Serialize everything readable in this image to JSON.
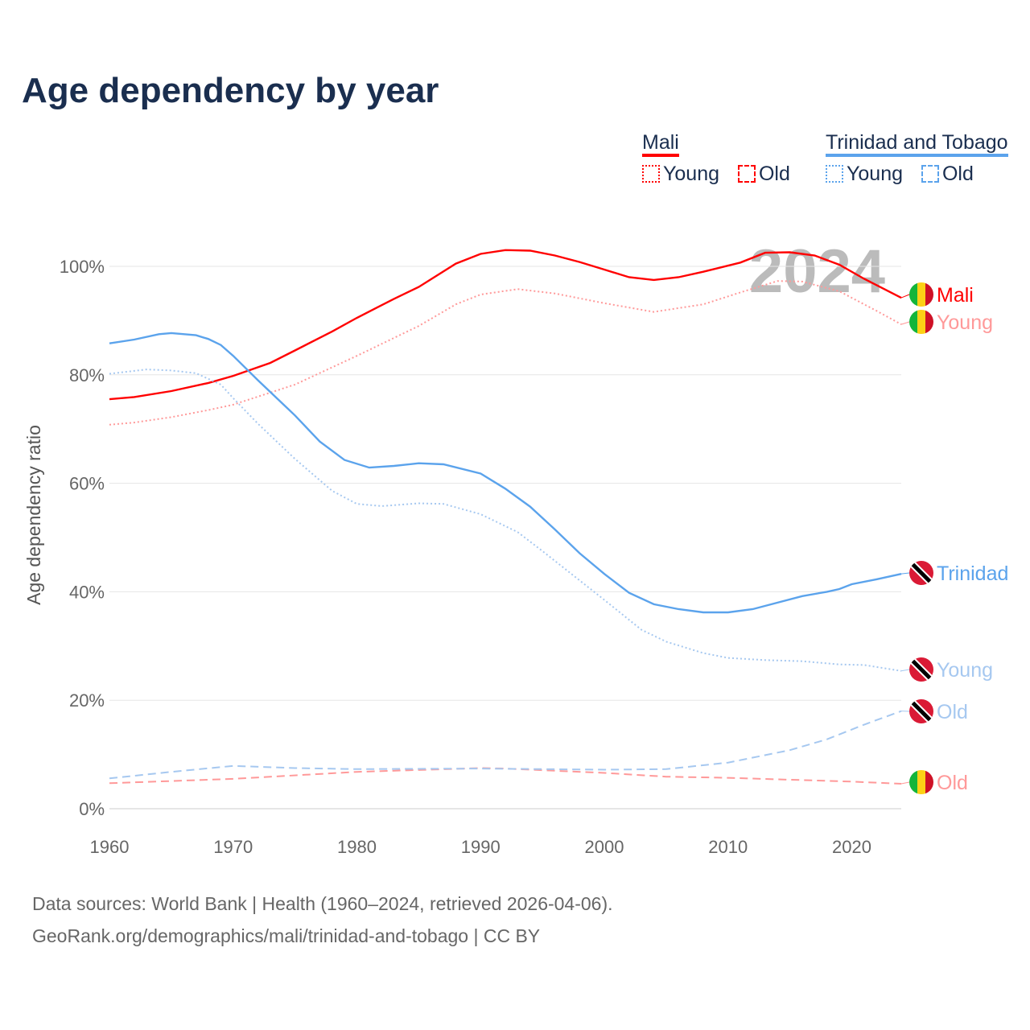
{
  "title": "Age dependency by year",
  "legend": {
    "groups": [
      {
        "name": "Mali",
        "color": "#ff0000",
        "items": [
          "Young",
          "Old"
        ]
      },
      {
        "name": "Trinidad and Tobago",
        "color": "#5ba3ec",
        "items": [
          "Young",
          "Old"
        ]
      }
    ]
  },
  "year_watermark": "2024",
  "source": [
    "Data sources: World Bank | Health (1960–2024, retrieved 2026-04-06).",
    "GeoRank.org/demographics/mali/trinidad-and-tobago | CC BY"
  ],
  "chart_data": {
    "type": "line",
    "title": "Age dependency by year",
    "xlabel": "",
    "ylabel": "Age dependency ratio",
    "xlim": [
      1960,
      2024
    ],
    "ylim": [
      0,
      100
    ],
    "xticks": [
      "1960",
      "1970",
      "1980",
      "1990",
      "2000",
      "2010",
      "2020"
    ],
    "yticks": [
      "0%",
      "20%",
      "40%",
      "60%",
      "80%",
      "100%"
    ],
    "series": [
      {
        "name": "Mali",
        "label": "Mali",
        "country": "mali",
        "color": "#ff0000",
        "style": "solid",
        "points": [
          [
            1960,
            75.5
          ],
          [
            1962,
            75.9
          ],
          [
            1965,
            77
          ],
          [
            1968,
            78.5
          ],
          [
            1970,
            79.8
          ],
          [
            1973,
            82.2
          ],
          [
            1975,
            84.5
          ],
          [
            1978,
            88
          ],
          [
            1980,
            90.5
          ],
          [
            1983,
            94
          ],
          [
            1985,
            96.2
          ],
          [
            1988,
            100.5
          ],
          [
            1990,
            102.3
          ],
          [
            1992,
            103
          ],
          [
            1994,
            102.9
          ],
          [
            1996,
            102
          ],
          [
            1998,
            100.8
          ],
          [
            2000,
            99.4
          ],
          [
            2002,
            98
          ],
          [
            2004,
            97.5
          ],
          [
            2006,
            98
          ],
          [
            2008,
            99
          ],
          [
            2011,
            100.7
          ],
          [
            2013,
            102.5
          ],
          [
            2015,
            102.6
          ],
          [
            2017,
            102
          ],
          [
            2019,
            100.3
          ],
          [
            2021,
            97.7
          ],
          [
            2024,
            94.2
          ]
        ]
      },
      {
        "name": "Mali Young",
        "label": "Young",
        "country": "mali",
        "color": "#ff9999",
        "style": "dotted",
        "points": [
          [
            1960,
            70.8
          ],
          [
            1962,
            71.2
          ],
          [
            1965,
            72.2
          ],
          [
            1968,
            73.5
          ],
          [
            1970,
            74.5
          ],
          [
            1975,
            78.2
          ],
          [
            1980,
            83.5
          ],
          [
            1985,
            89
          ],
          [
            1988,
            93
          ],
          [
            1990,
            94.8
          ],
          [
            1993,
            95.8
          ],
          [
            1996,
            95
          ],
          [
            2000,
            93.2
          ],
          [
            2004,
            91.6
          ],
          [
            2008,
            93
          ],
          [
            2011,
            95.2
          ],
          [
            2014,
            97.3
          ],
          [
            2016,
            97.2
          ],
          [
            2019,
            95.4
          ],
          [
            2022,
            91.8
          ],
          [
            2024,
            89.3
          ]
        ]
      },
      {
        "name": "Mali Old",
        "label": "Old",
        "country": "mali",
        "color": "#ff9999",
        "style": "dashed",
        "points": [
          [
            1960,
            4.7
          ],
          [
            1970,
            5.5
          ],
          [
            1980,
            6.8
          ],
          [
            1990,
            7.5
          ],
          [
            1992,
            7.4
          ],
          [
            2000,
            6.6
          ],
          [
            2005,
            5.9
          ],
          [
            2010,
            5.7
          ],
          [
            2020,
            5.0
          ],
          [
            2024,
            4.6
          ]
        ]
      },
      {
        "name": "Trinidad and Tobago",
        "label": "Trinidad",
        "country": "tt",
        "color": "#5ba3ec",
        "style": "solid",
        "points": [
          [
            1960,
            85.8
          ],
          [
            1962,
            86.5
          ],
          [
            1964,
            87.5
          ],
          [
            1965,
            87.7
          ],
          [
            1967,
            87.3
          ],
          [
            1968,
            86.6
          ],
          [
            1969,
            85.5
          ],
          [
            1970,
            83.5
          ],
          [
            1972,
            79
          ],
          [
            1975,
            72.5
          ],
          [
            1977,
            67.7
          ],
          [
            1979,
            64.3
          ],
          [
            1981,
            62.9
          ],
          [
            1983,
            63.2
          ],
          [
            1985,
            63.7
          ],
          [
            1987,
            63.5
          ],
          [
            1990,
            61.8
          ],
          [
            1992,
            59
          ],
          [
            1994,
            55.7
          ],
          [
            1996,
            51.5
          ],
          [
            1998,
            47.1
          ],
          [
            2000,
            43.3
          ],
          [
            2002,
            39.8
          ],
          [
            2004,
            37.7
          ],
          [
            2006,
            36.8
          ],
          [
            2008,
            36.2
          ],
          [
            2010,
            36.2
          ],
          [
            2012,
            36.8
          ],
          [
            2014,
            38
          ],
          [
            2016,
            39.2
          ],
          [
            2018,
            40
          ],
          [
            2019,
            40.5
          ],
          [
            2020,
            41.4
          ],
          [
            2022,
            42.3
          ],
          [
            2024,
            43.3
          ]
        ]
      },
      {
        "name": "Trinidad and Tobago Young",
        "label": "Young",
        "country": "tt",
        "color": "#a6c8f0",
        "style": "dotted",
        "points": [
          [
            1960,
            80.2
          ],
          [
            1963,
            81
          ],
          [
            1965,
            80.8
          ],
          [
            1967,
            80.3
          ],
          [
            1969,
            78.2
          ],
          [
            1970,
            75.7
          ],
          [
            1972,
            71
          ],
          [
            1975,
            64.5
          ],
          [
            1978,
            58.6
          ],
          [
            1980,
            56.2
          ],
          [
            1982,
            55.8
          ],
          [
            1985,
            56.3
          ],
          [
            1987,
            56.2
          ],
          [
            1990,
            54.3
          ],
          [
            1993,
            51
          ],
          [
            1995,
            47.5
          ],
          [
            2000,
            38.5
          ],
          [
            2003,
            33
          ],
          [
            2005,
            30.8
          ],
          [
            2008,
            28.7
          ],
          [
            2010,
            27.8
          ],
          [
            2013,
            27.4
          ],
          [
            2016,
            27.2
          ],
          [
            2019,
            26.6
          ],
          [
            2021,
            26.5
          ],
          [
            2024,
            25.4
          ]
        ]
      },
      {
        "name": "Trinidad and Tobago Old",
        "label": "Old",
        "country": "tt",
        "color": "#a6c8f0",
        "style": "dashed",
        "points": [
          [
            1960,
            5.6
          ],
          [
            1965,
            6.8
          ],
          [
            1970,
            7.9
          ],
          [
            1975,
            7.5
          ],
          [
            1980,
            7.3
          ],
          [
            1990,
            7.4
          ],
          [
            2000,
            7.2
          ],
          [
            2005,
            7.3
          ],
          [
            2010,
            8.5
          ],
          [
            2015,
            10.8
          ],
          [
            2018,
            12.8
          ],
          [
            2021,
            15.5
          ],
          [
            2024,
            18
          ]
        ]
      }
    ]
  }
}
